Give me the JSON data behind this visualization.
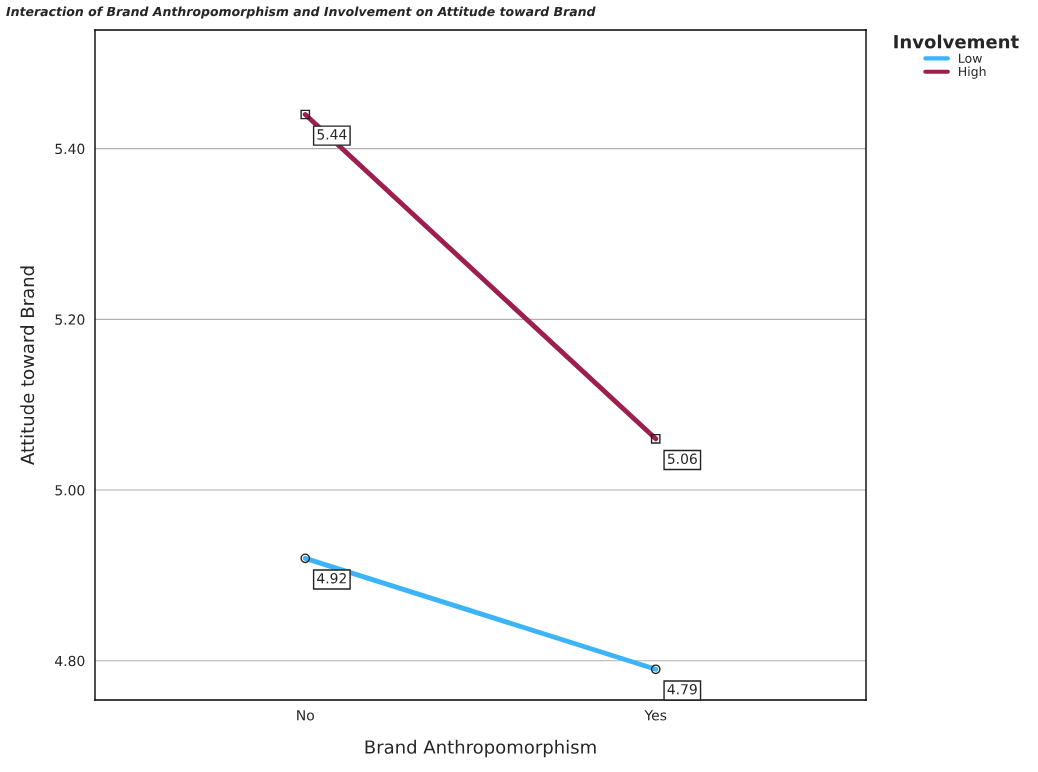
{
  "chart_data": {
    "type": "line",
    "title": "Interaction of Brand Anthropomorphism and Involvement on Attitude toward Brand",
    "xlabel": "Brand Anthropomorphism",
    "ylabel": "Attitude toward Brand",
    "legend_title": "Involvement",
    "categories": [
      "No",
      "Yes"
    ],
    "series": [
      {
        "name": "Low",
        "color": "#3cb4f7",
        "values": [
          4.92,
          4.79
        ],
        "marker": "circle"
      },
      {
        "name": "High",
        "color": "#9c1f50",
        "values": [
          5.44,
          5.06
        ],
        "marker": "square"
      }
    ],
    "ylim": [
      4.754,
      5.539
    ],
    "yticks": [
      {
        "value": 4.8,
        "label": "4.80"
      },
      {
        "value": 5.0,
        "label": "5.00"
      },
      {
        "value": 5.2,
        "label": "5.20"
      },
      {
        "value": 5.4,
        "label": "5.40"
      }
    ],
    "grid": "y",
    "legend": "top right",
    "data_labels": true
  }
}
